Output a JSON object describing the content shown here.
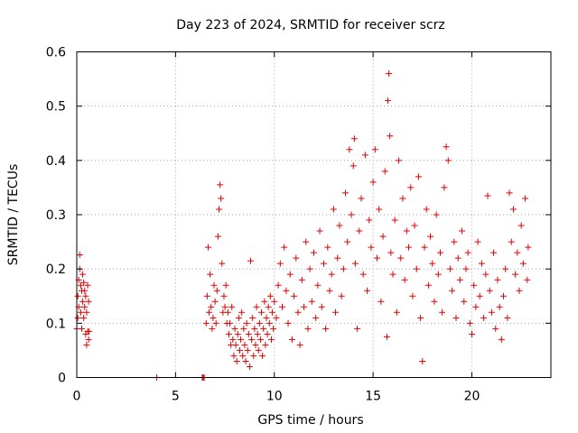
{
  "chart_data": {
    "type": "scatter",
    "title": "Day 223 of 2024, SRMTID for receiver scrz",
    "xlabel": "GPS time / hours",
    "ylabel": "SRMTID / TECUs",
    "xlim": [
      0,
      24
    ],
    "ylim": [
      0,
      0.6
    ],
    "xticks": [
      0,
      5,
      10,
      15,
      20
    ],
    "xtick_labels": [
      "0",
      "5",
      "10",
      "15",
      "20"
    ],
    "yticks": [
      0,
      0.1,
      0.2,
      0.3,
      0.4,
      0.5,
      0.6
    ],
    "ytick_labels": [
      "0",
      "0.1",
      "0.2",
      "0.3",
      "0.4",
      "0.5",
      "0.6"
    ],
    "grid": true,
    "marker": "plus",
    "color": "#e00000",
    "series": [
      {
        "name": "SRMTID",
        "points": [
          [
            0.0,
            0.09
          ],
          [
            0.05,
            0.11
          ],
          [
            0.05,
            0.15
          ],
          [
            0.1,
            0.18
          ],
          [
            0.1,
            0.13
          ],
          [
            0.15,
            0.226
          ],
          [
            0.15,
            0.2
          ],
          [
            0.2,
            0.17
          ],
          [
            0.2,
            0.12
          ],
          [
            0.25,
            0.16
          ],
          [
            0.25,
            0.09
          ],
          [
            0.3,
            0.19
          ],
          [
            0.3,
            0.14
          ],
          [
            0.35,
            0.175
          ],
          [
            0.35,
            0.11
          ],
          [
            0.4,
            0.16
          ],
          [
            0.4,
            0.13
          ],
          [
            0.45,
            0.15
          ],
          [
            0.45,
            0.08
          ],
          [
            0.5,
            0.12
          ],
          [
            0.5,
            0.06
          ],
          [
            0.55,
            0.17
          ],
          [
            0.55,
            0.085
          ],
          [
            0.6,
            0.14
          ],
          [
            0.6,
            0.07
          ],
          [
            0.62,
            0.085
          ],
          [
            4.05,
            0.0
          ],
          [
            6.35,
            0.0
          ],
          [
            6.4,
            0.0
          ],
          [
            6.45,
            0.0
          ],
          [
            6.55,
            0.1
          ],
          [
            6.6,
            0.15
          ],
          [
            6.65,
            0.24
          ],
          [
            6.7,
            0.12
          ],
          [
            6.75,
            0.19
          ],
          [
            6.8,
            0.13
          ],
          [
            6.85,
            0.09
          ],
          [
            6.9,
            0.11
          ],
          [
            6.95,
            0.17
          ],
          [
            7.0,
            0.14
          ],
          [
            7.05,
            0.1
          ],
          [
            7.1,
            0.16
          ],
          [
            7.15,
            0.26
          ],
          [
            7.2,
            0.31
          ],
          [
            7.25,
            0.355
          ],
          [
            7.3,
            0.33
          ],
          [
            7.35,
            0.21
          ],
          [
            7.4,
            0.12
          ],
          [
            7.45,
            0.15
          ],
          [
            7.5,
            0.13
          ],
          [
            7.55,
            0.17
          ],
          [
            7.6,
            0.1
          ],
          [
            7.65,
            0.12
          ],
          [
            7.7,
            0.08
          ],
          [
            7.75,
            0.1
          ],
          [
            7.8,
            0.06
          ],
          [
            7.85,
            0.13
          ],
          [
            7.9,
            0.07
          ],
          [
            7.95,
            0.04
          ],
          [
            8.0,
            0.09
          ],
          [
            8.05,
            0.06
          ],
          [
            8.1,
            0.03
          ],
          [
            8.15,
            0.08
          ],
          [
            8.2,
            0.11
          ],
          [
            8.25,
            0.05
          ],
          [
            8.3,
            0.07
          ],
          [
            8.35,
            0.12
          ],
          [
            8.4,
            0.04
          ],
          [
            8.45,
            0.09
          ],
          [
            8.5,
            0.06
          ],
          [
            8.55,
            0.03
          ],
          [
            8.6,
            0.1
          ],
          [
            8.65,
            0.05
          ],
          [
            8.7,
            0.08
          ],
          [
            8.75,
            0.02
          ],
          [
            8.8,
            0.215
          ],
          [
            8.85,
            0.07
          ],
          [
            8.9,
            0.11
          ],
          [
            8.95,
            0.04
          ],
          [
            9.0,
            0.09
          ],
          [
            9.05,
            0.06
          ],
          [
            9.1,
            0.13
          ],
          [
            9.15,
            0.08
          ],
          [
            9.2,
            0.05
          ],
          [
            9.25,
            0.1
          ],
          [
            9.3,
            0.07
          ],
          [
            9.35,
            0.12
          ],
          [
            9.4,
            0.04
          ],
          [
            9.45,
            0.09
          ],
          [
            9.5,
            0.14
          ],
          [
            9.55,
            0.06
          ],
          [
            9.6,
            0.11
          ],
          [
            9.65,
            0.08
          ],
          [
            9.7,
            0.13
          ],
          [
            9.75,
            0.1
          ],
          [
            9.8,
            0.15
          ],
          [
            9.85,
            0.07
          ],
          [
            9.9,
            0.12
          ],
          [
            9.95,
            0.09
          ],
          [
            10.0,
            0.14
          ],
          [
            10.1,
            0.11
          ],
          [
            10.2,
            0.17
          ],
          [
            10.3,
            0.21
          ],
          [
            10.4,
            0.13
          ],
          [
            10.5,
            0.24
          ],
          [
            10.6,
            0.16
          ],
          [
            10.7,
            0.1
          ],
          [
            10.8,
            0.19
          ],
          [
            10.9,
            0.07
          ],
          [
            11.0,
            0.15
          ],
          [
            11.1,
            0.22
          ],
          [
            11.2,
            0.12
          ],
          [
            11.3,
            0.06
          ],
          [
            11.4,
            0.18
          ],
          [
            11.5,
            0.13
          ],
          [
            11.6,
            0.25
          ],
          [
            11.7,
            0.09
          ],
          [
            11.8,
            0.2
          ],
          [
            11.9,
            0.14
          ],
          [
            12.0,
            0.23
          ],
          [
            12.1,
            0.11
          ],
          [
            12.2,
            0.17
          ],
          [
            12.3,
            0.27
          ],
          [
            12.4,
            0.13
          ],
          [
            12.5,
            0.21
          ],
          [
            12.6,
            0.09
          ],
          [
            12.7,
            0.24
          ],
          [
            12.8,
            0.16
          ],
          [
            12.9,
            0.19
          ],
          [
            13.0,
            0.31
          ],
          [
            13.1,
            0.12
          ],
          [
            13.2,
            0.22
          ],
          [
            13.3,
            0.28
          ],
          [
            13.4,
            0.15
          ],
          [
            13.5,
            0.2
          ],
          [
            13.6,
            0.34
          ],
          [
            13.7,
            0.25
          ],
          [
            13.8,
            0.42
          ],
          [
            13.9,
            0.3
          ],
          [
            14.0,
            0.39
          ],
          [
            14.05,
            0.44
          ],
          [
            14.1,
            0.21
          ],
          [
            14.2,
            0.09
          ],
          [
            14.3,
            0.27
          ],
          [
            14.4,
            0.33
          ],
          [
            14.5,
            0.19
          ],
          [
            14.6,
            0.41
          ],
          [
            14.7,
            0.16
          ],
          [
            14.8,
            0.29
          ],
          [
            14.9,
            0.24
          ],
          [
            15.0,
            0.36
          ],
          [
            15.1,
            0.42
          ],
          [
            15.2,
            0.22
          ],
          [
            15.3,
            0.31
          ],
          [
            15.4,
            0.14
          ],
          [
            15.5,
            0.26
          ],
          [
            15.6,
            0.38
          ],
          [
            15.7,
            0.075
          ],
          [
            15.75,
            0.51
          ],
          [
            15.8,
            0.56
          ],
          [
            15.85,
            0.445
          ],
          [
            15.9,
            0.23
          ],
          [
            16.0,
            0.19
          ],
          [
            16.1,
            0.29
          ],
          [
            16.2,
            0.12
          ],
          [
            16.3,
            0.4
          ],
          [
            16.4,
            0.22
          ],
          [
            16.5,
            0.33
          ],
          [
            16.6,
            0.18
          ],
          [
            16.7,
            0.27
          ],
          [
            16.8,
            0.24
          ],
          [
            16.9,
            0.35
          ],
          [
            17.0,
            0.15
          ],
          [
            17.1,
            0.28
          ],
          [
            17.2,
            0.2
          ],
          [
            17.3,
            0.37
          ],
          [
            17.4,
            0.11
          ],
          [
            17.5,
            0.03
          ],
          [
            17.6,
            0.24
          ],
          [
            17.7,
            0.31
          ],
          [
            17.8,
            0.17
          ],
          [
            17.9,
            0.26
          ],
          [
            18.0,
            0.21
          ],
          [
            18.1,
            0.14
          ],
          [
            18.2,
            0.3
          ],
          [
            18.3,
            0.19
          ],
          [
            18.4,
            0.23
          ],
          [
            18.5,
            0.12
          ],
          [
            18.6,
            0.35
          ],
          [
            18.7,
            0.425
          ],
          [
            18.8,
            0.4
          ],
          [
            18.9,
            0.2
          ],
          [
            19.0,
            0.16
          ],
          [
            19.1,
            0.25
          ],
          [
            19.2,
            0.11
          ],
          [
            19.3,
            0.22
          ],
          [
            19.4,
            0.18
          ],
          [
            19.5,
            0.27
          ],
          [
            19.6,
            0.14
          ],
          [
            19.7,
            0.2
          ],
          [
            19.8,
            0.23
          ],
          [
            19.9,
            0.1
          ],
          [
            20.0,
            0.08
          ],
          [
            20.1,
            0.17
          ],
          [
            20.2,
            0.13
          ],
          [
            20.3,
            0.25
          ],
          [
            20.4,
            0.15
          ],
          [
            20.5,
            0.21
          ],
          [
            20.6,
            0.11
          ],
          [
            20.7,
            0.19
          ],
          [
            20.8,
            0.335
          ],
          [
            20.9,
            0.16
          ],
          [
            21.0,
            0.12
          ],
          [
            21.1,
            0.23
          ],
          [
            21.2,
            0.09
          ],
          [
            21.3,
            0.18
          ],
          [
            21.4,
            0.13
          ],
          [
            21.5,
            0.07
          ],
          [
            21.6,
            0.15
          ],
          [
            21.7,
            0.2
          ],
          [
            21.8,
            0.11
          ],
          [
            21.9,
            0.34
          ],
          [
            22.0,
            0.25
          ],
          [
            22.1,
            0.31
          ],
          [
            22.2,
            0.19
          ],
          [
            22.3,
            0.23
          ],
          [
            22.4,
            0.16
          ],
          [
            22.5,
            0.28
          ],
          [
            22.6,
            0.21
          ],
          [
            22.7,
            0.33
          ],
          [
            22.8,
            0.18
          ],
          [
            22.85,
            0.24
          ]
        ]
      }
    ]
  }
}
